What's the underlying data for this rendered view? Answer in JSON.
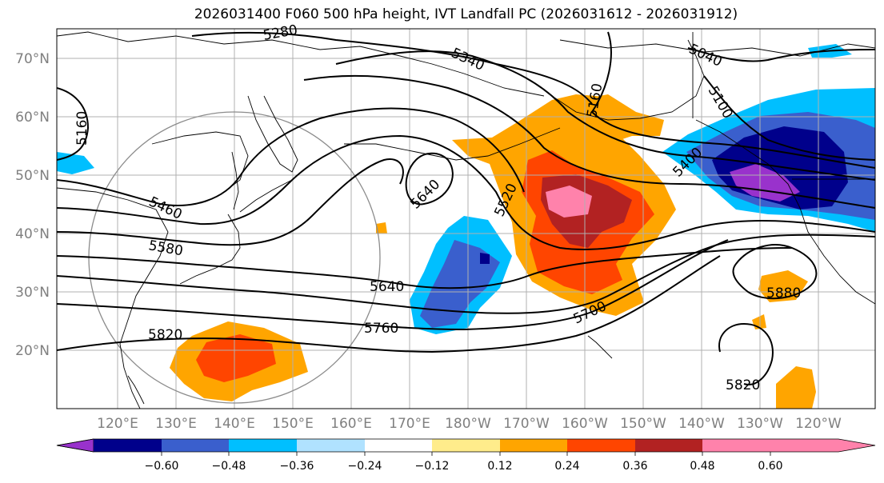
{
  "title": "2026031400 F060 500 hPa height, IVT Landfall PC (2026031612 - 2026031912)",
  "map": {
    "lat_labels": [
      "70°N",
      "60°N",
      "50°N",
      "40°N",
      "30°N",
      "20°N"
    ],
    "lon_labels": [
      "120°E",
      "130°E",
      "140°E",
      "150°E",
      "160°E",
      "170°E",
      "180°W",
      "170°W",
      "160°W",
      "150°W",
      "140°W",
      "130°W",
      "120°W"
    ],
    "contour_labels": [
      "5280",
      "5340",
      "5040",
      "5160",
      "5100",
      "5160",
      "5460",
      "5640",
      "5520",
      "5400",
      "5580",
      "5640",
      "5760",
      "5700",
      "5880",
      "5820",
      "5820"
    ],
    "colors": {
      "grid": "#b0b0b0",
      "contour": "#000000",
      "coast": "#000000"
    }
  },
  "colorbar": {
    "colors": [
      "#9932cc",
      "#00008b",
      "#3a5fcd",
      "#00bfff",
      "#b0e2ff",
      "#ffffff",
      "#ffec8b",
      "#ffa500",
      "#ff4500",
      "#b22222",
      "#ff82ab"
    ],
    "tick_labels": [
      "−0.60",
      "−0.48",
      "−0.36",
      "−0.24",
      "−0.12",
      "0.12",
      "0.24",
      "0.36",
      "0.48",
      "0.60"
    ]
  }
}
